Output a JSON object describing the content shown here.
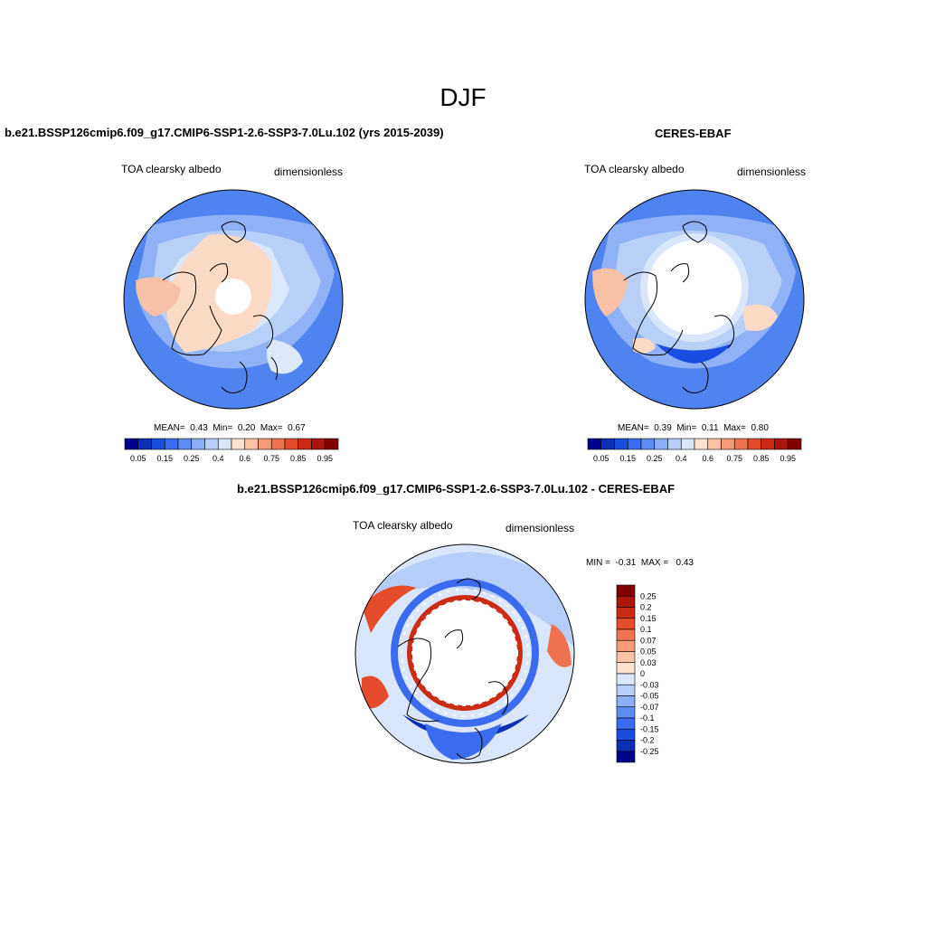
{
  "title": "DJF",
  "panels": {
    "model": {
      "title": "b.e21.BSSP126cmip6.f09_g17.CMIP6-SSP1-2.6-SSP3-7.0Lu.102 (yrs 2015-2039)",
      "variable": "TOA clearsky albedo",
      "units": "dimensionless",
      "stats": {
        "mean_label": "MEAN=",
        "mean": "0.43",
        "min_label": "Min=",
        "min": "0.20",
        "max_label": "Max=",
        "max": "0.67"
      }
    },
    "obs": {
      "title": "CERES-EBAF",
      "variable": "TOA clearsky albedo",
      "units": "dimensionless",
      "stats": {
        "mean_label": "MEAN=",
        "mean": "0.39",
        "min_label": "Min=",
        "min": "0.11",
        "max_label": "Max=",
        "max": "0.80"
      }
    },
    "diff": {
      "title": "b.e21.BSSP126cmip6.f09_g17.CMIP6-SSP1-2.6-SSP3-7.0Lu.102 - CERES-EBAF",
      "variable": "TOA clearsky albedo",
      "units": "dimensionless",
      "minmax": {
        "min_label": "MIN =",
        "min": "-0.31",
        "max_label": "MAX =",
        "max": "0.43"
      }
    }
  },
  "colorbar_abs": {
    "colors": [
      "#00008b",
      "#0a2fb4",
      "#1a4ee0",
      "#3b6cf0",
      "#5e8cf5",
      "#8aaef7",
      "#b5cdf8",
      "#dae7fb",
      "#fde2cf",
      "#fbc2a3",
      "#f79c79",
      "#ef7350",
      "#e54c2b",
      "#cd2c14",
      "#a8150a",
      "#800000"
    ],
    "labels": [
      "0.05",
      "0.15",
      "0.25",
      "0.4",
      "0.6",
      "0.75",
      "0.85",
      "0.95"
    ]
  },
  "colorbar_diff": {
    "colors": [
      "#800000",
      "#a8150a",
      "#cd2c14",
      "#e54c2b",
      "#ef7350",
      "#f79c79",
      "#fbc2a3",
      "#fde2cf",
      "#dae7fb",
      "#b5cdf8",
      "#8aaef7",
      "#5e8cf5",
      "#3b6cf0",
      "#1a4ee0",
      "#0a2fb4",
      "#00008b"
    ],
    "labels": [
      "0.25",
      "0.2",
      "0.15",
      "0.1",
      "0.07",
      "0.05",
      "0.03",
      "0",
      "-0.03",
      "-0.05",
      "-0.07",
      "-0.1",
      "-0.15",
      "-0.2",
      "-0.25"
    ]
  }
}
